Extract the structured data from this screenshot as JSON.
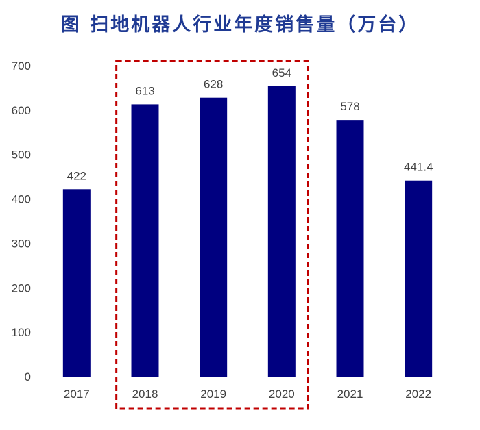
{
  "chart_data": {
    "type": "bar",
    "title": "图 扫地机器人行业年度销售量（万台）",
    "categories": [
      "2017",
      "2018",
      "2019",
      "2020",
      "2021",
      "2022"
    ],
    "values": [
      422,
      613,
      628,
      654,
      578,
      441.4
    ],
    "data_labels": [
      "422",
      "613",
      "628",
      "654",
      "578",
      "441.4"
    ],
    "y_ticks": [
      "0",
      "100",
      "200",
      "300",
      "400",
      "500",
      "600",
      "700"
    ],
    "ylim": [
      0,
      700
    ],
    "xlabel": "",
    "ylabel": "",
    "grid": false,
    "legend": "none",
    "bar_color": "#000080",
    "highlight": {
      "categories": [
        "2018",
        "2019",
        "2020"
      ],
      "style": "dashed-box",
      "color": "#c00000"
    }
  }
}
